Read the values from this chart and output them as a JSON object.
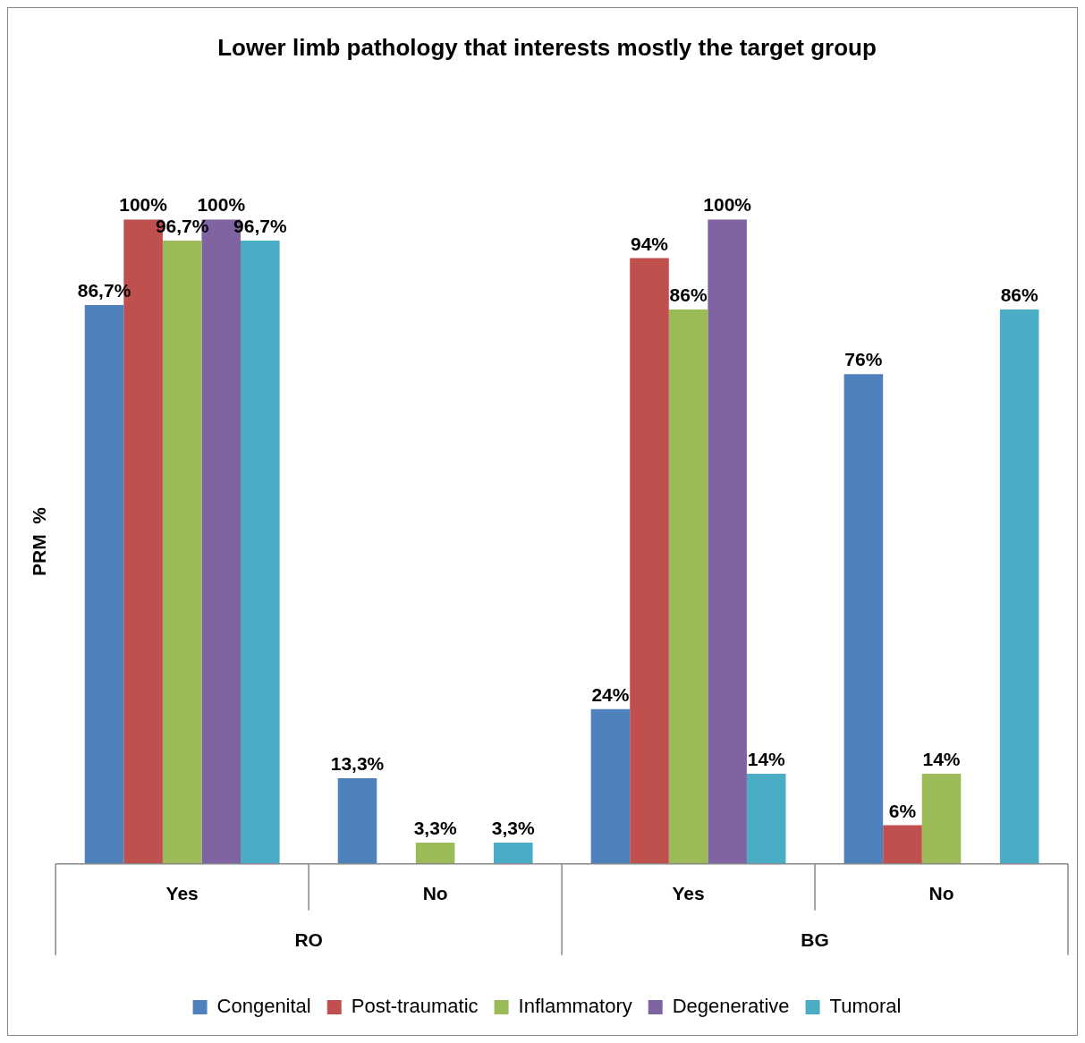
{
  "chart_data": {
    "type": "bar",
    "title": "Lower limb pathology that interests mostly the target group",
    "ylabel": "PRM  %",
    "categories": [
      "Yes",
      "No",
      "Yes",
      "No"
    ],
    "annotations": [
      "RO",
      "BG"
    ],
    "ylim": [
      0,
      100
    ],
    "tick_labels": "x",
    "grid": false,
    "legend": "bottom",
    "series": [
      {
        "name": "Congenital",
        "color": "#4f81bd",
        "values": [
          86.7,
          13.3,
          24,
          76
        ],
        "value_labels": [
          "86,7%",
          "13,3%",
          "24%",
          "76%"
        ]
      },
      {
        "name": "Post-traumatic",
        "color": "#c0504d",
        "values": [
          100,
          0,
          94,
          6
        ],
        "value_labels": [
          "100%",
          null,
          "94%",
          "6%"
        ]
      },
      {
        "name": "Inflammatory",
        "color": "#9bbb59",
        "values": [
          96.7,
          3.3,
          86,
          14
        ],
        "value_labels": [
          "96,7%",
          "3,3%",
          "86%",
          "14%"
        ]
      },
      {
        "name": "Degenerative",
        "color": "#8064a2",
        "values": [
          100,
          0,
          100,
          0
        ],
        "value_labels": [
          "100%",
          null,
          "100%",
          null
        ]
      },
      {
        "name": "Tumoral",
        "color": "#4bacc6",
        "values": [
          96.7,
          3.3,
          14,
          86
        ],
        "value_labels": [
          "96,7%",
          "3,3%",
          "14%",
          "86%"
        ]
      }
    ]
  }
}
